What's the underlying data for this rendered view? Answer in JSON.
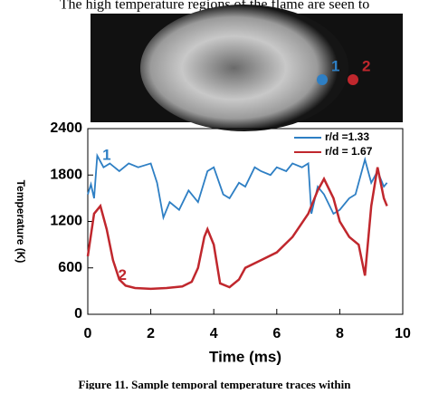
{
  "header_text": "The high temperature regions of the flame are seen to",
  "image": {
    "labels": [
      "1",
      "2"
    ],
    "colors": [
      "#2e7fc4",
      "#c0272d"
    ]
  },
  "chart_data": {
    "type": "line",
    "xlabel": "Time (ms)",
    "ylabel": "Temperature (K)",
    "xlim": [
      0,
      10
    ],
    "xticks": [
      0,
      2,
      4,
      6,
      8,
      10
    ],
    "ylim": [
      0,
      2400
    ],
    "yticks": [
      0,
      600,
      1200,
      1800,
      2400
    ],
    "legend": "upper right",
    "annotations": [
      {
        "text": "1",
        "color": "#2e7fc4",
        "x": 0.6,
        "y": 2050
      },
      {
        "text": "2",
        "color": "#c0272d",
        "x": 1.1,
        "y": 500
      }
    ],
    "series": [
      {
        "name": "r/d =1.33",
        "color": "#2e7fc4",
        "x": [
          0,
          0.1,
          0.2,
          0.3,
          0.5,
          0.7,
          1,
          1.3,
          1.6,
          2,
          2.2,
          2.4,
          2.6,
          2.9,
          3.2,
          3.5,
          3.8,
          4,
          4.3,
          4.5,
          4.8,
          5,
          5.3,
          5.5,
          5.8,
          6,
          6.3,
          6.5,
          6.8,
          7,
          7.1,
          7.3,
          7.5,
          7.8,
          8,
          8.3,
          8.5,
          8.8,
          9,
          9.2,
          9.4,
          9.5
        ],
        "values": [
          1550,
          1680,
          1500,
          2050,
          1900,
          1950,
          1850,
          1950,
          1900,
          1950,
          1700,
          1250,
          1450,
          1350,
          1600,
          1450,
          1850,
          1900,
          1550,
          1500,
          1700,
          1650,
          1900,
          1850,
          1800,
          1900,
          1850,
          1950,
          1900,
          1950,
          1300,
          1650,
          1550,
          1300,
          1350,
          1500,
          1550,
          2000,
          1700,
          1850,
          1650,
          1700
        ]
      },
      {
        "name": "r/d = 1.67",
        "color": "#c0272d",
        "x": [
          0,
          0.2,
          0.4,
          0.6,
          0.8,
          1,
          1.2,
          1.5,
          2,
          2.5,
          3,
          3.3,
          3.5,
          3.7,
          3.8,
          4,
          4.2,
          4.5,
          4.8,
          5,
          5.5,
          6,
          6.5,
          7,
          7.3,
          7.5,
          7.8,
          8,
          8.3,
          8.6,
          8.8,
          9,
          9.2,
          9.4,
          9.5
        ],
        "values": [
          750,
          1300,
          1400,
          1100,
          700,
          450,
          370,
          340,
          330,
          340,
          360,
          420,
          600,
          1000,
          1100,
          900,
          400,
          350,
          450,
          600,
          700,
          800,
          1000,
          1300,
          1600,
          1750,
          1500,
          1200,
          1000,
          900,
          500,
          1400,
          1900,
          1500,
          1400
        ]
      }
    ]
  },
  "caption": "Figure 11.    Sample temporal temperature traces within"
}
